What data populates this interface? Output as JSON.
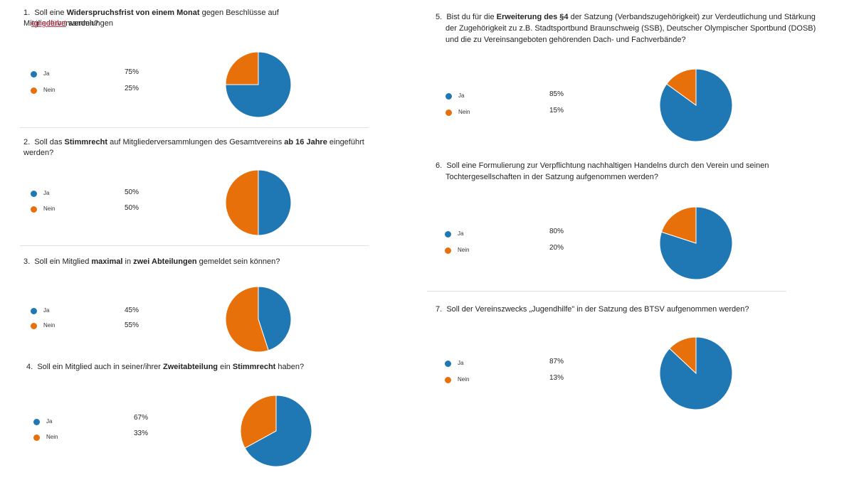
{
  "colors": {
    "ja": "#1f77b4",
    "nein": "#e8700a"
  },
  "questions": [
    {
      "num": "1.",
      "parts": [
        [
          "Soll eine ",
          ""
        ],
        [
          "Widerspruchsfrist von einem Monat",
          "b"
        ],
        [
          " gegen Beschlüsse auf Mitgliederversammlungen",
          ""
        ]
      ],
      "line2": [
        [
          "eingeführt",
          "red"
        ],
        [
          " werden?",
          ""
        ]
      ]
    },
    {
      "num": "2.",
      "parts": [
        [
          "Soll das ",
          ""
        ],
        [
          "Stimmrecht",
          "b"
        ],
        [
          " auf Mitgliederversammlungen des Gesamtvereins ",
          ""
        ],
        [
          "ab 16 Jahre",
          "b"
        ],
        [
          " eingeführt werden?",
          ""
        ]
      ]
    },
    {
      "num": "3.",
      "parts": [
        [
          "Soll ein Mitglied ",
          ""
        ],
        [
          "maximal",
          "b"
        ],
        [
          " in ",
          ""
        ],
        [
          "zwei Abteilungen",
          "b"
        ],
        [
          " gemeldet sein können?",
          ""
        ]
      ]
    },
    {
      "num": "4.",
      "parts": [
        [
          "Soll ein Mitglied auch in seiner/ihrer ",
          ""
        ],
        [
          "Zweitabteilung",
          "b"
        ],
        [
          " ein ",
          ""
        ],
        [
          "Stimmrecht",
          "b"
        ],
        [
          " haben?",
          ""
        ]
      ]
    },
    {
      "num": "5.",
      "parts": [
        [
          "Bist du für die ",
          ""
        ],
        [
          "Erweiterung des §4",
          "b"
        ],
        [
          " der Satzung (Verbandszugehörigkeit) zur Verdeutlichung und Stärkung",
          ""
        ]
      ],
      "line2": [
        [
          "der Zugehörigkeit zu z.B. Stadtsportbund Braunschweig (SSB), Deutscher Olympischer Sportbund (DOSB)",
          ""
        ]
      ],
      "line3": [
        [
          "und die zu Vereinsangeboten gehörenden Dach- und Fachverbände?",
          ""
        ]
      ]
    },
    {
      "num": "6.",
      "parts": [
        [
          "Soll eine Formulierung zur Verpflichtung nachhaltigen Handelns durch den Verein und seinen",
          ""
        ]
      ],
      "line2": [
        [
          "Tochtergesellschaften in der Satzung aufgenommen werden?",
          ""
        ]
      ]
    },
    {
      "num": "7.",
      "parts": [
        [
          "Soll der Vereinszwecks „Jugendhilfe\" in der Satzung des BTSV aufgenommen werden?",
          ""
        ]
      ]
    }
  ],
  "chart_data": [
    {
      "type": "pie",
      "categories": [
        "Ja",
        "Nein"
      ],
      "values": [
        75,
        25
      ],
      "labels": [
        "75%",
        "25%"
      ]
    },
    {
      "type": "pie",
      "categories": [
        "Ja",
        "Nein"
      ],
      "values": [
        50,
        50
      ],
      "labels": [
        "50%",
        "50%"
      ]
    },
    {
      "type": "pie",
      "categories": [
        "Ja",
        "Nein"
      ],
      "values": [
        45,
        55
      ],
      "labels": [
        "45%",
        "55%"
      ]
    },
    {
      "type": "pie",
      "categories": [
        "Ja",
        "Nein"
      ],
      "values": [
        67,
        33
      ],
      "labels": [
        "67%",
        "33%"
      ]
    },
    {
      "type": "pie",
      "categories": [
        "Ja",
        "Nein"
      ],
      "values": [
        85,
        15
      ],
      "labels": [
        "85%",
        "15%"
      ]
    },
    {
      "type": "pie",
      "categories": [
        "Ja",
        "Nein"
      ],
      "values": [
        80,
        20
      ],
      "labels": [
        "80%",
        "20%"
      ]
    },
    {
      "type": "pie",
      "categories": [
        "Ja",
        "Nein"
      ],
      "values": [
        87,
        13
      ],
      "labels": [
        "87%",
        "13%"
      ]
    }
  ]
}
